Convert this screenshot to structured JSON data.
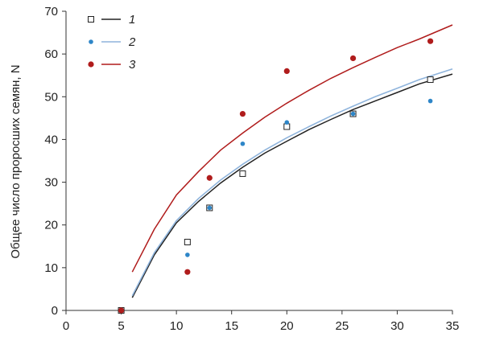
{
  "chart_data": {
    "type": "scatter",
    "ylabel": "Общее число проросших семян, N",
    "xlabel": "",
    "xlim": [
      0,
      35
    ],
    "ylim": [
      0,
      70
    ],
    "xticks": [
      0,
      5,
      10,
      15,
      20,
      25,
      30,
      35
    ],
    "yticks": [
      0,
      10,
      20,
      30,
      40,
      50,
      60,
      70
    ],
    "grid": false,
    "legend_position": "top-left",
    "series": [
      {
        "name": "1",
        "color": "#222222",
        "marker": "open-square",
        "points": [
          [
            5,
            0
          ],
          [
            11,
            16
          ],
          [
            13,
            24
          ],
          [
            16,
            32
          ],
          [
            20,
            43
          ],
          [
            26,
            46
          ],
          [
            33,
            54
          ]
        ],
        "fit": [
          [
            6,
            3
          ],
          [
            8,
            13
          ],
          [
            10,
            20.5
          ],
          [
            12,
            25.5
          ],
          [
            14,
            29.8
          ],
          [
            16,
            33.5
          ],
          [
            18,
            36.8
          ],
          [
            20,
            39.6
          ],
          [
            22,
            42.3
          ],
          [
            24,
            44.7
          ],
          [
            26,
            47
          ],
          [
            28,
            49
          ],
          [
            30,
            51
          ],
          [
            32,
            53
          ],
          [
            35,
            55.3
          ]
        ]
      },
      {
        "name": "2",
        "color": "#2e86c8",
        "fit_color": "#8fb4dc",
        "marker": "dot",
        "points": [
          [
            5,
            0
          ],
          [
            11,
            13
          ],
          [
            13,
            24
          ],
          [
            16,
            39
          ],
          [
            20,
            44
          ],
          [
            26,
            46
          ],
          [
            33,
            49
          ]
        ],
        "fit": [
          [
            6,
            3.4
          ],
          [
            8,
            13.5
          ],
          [
            10,
            21
          ],
          [
            12,
            26.2
          ],
          [
            14,
            30.5
          ],
          [
            16,
            34.2
          ],
          [
            18,
            37.5
          ],
          [
            20,
            40.4
          ],
          [
            22,
            43
          ],
          [
            24,
            45.5
          ],
          [
            26,
            47.8
          ],
          [
            28,
            50
          ],
          [
            30,
            52
          ],
          [
            32,
            54
          ],
          [
            35,
            56.5
          ]
        ]
      },
      {
        "name": "3",
        "color": "#b01c1c",
        "marker": "dot",
        "points": [
          [
            5,
            0
          ],
          [
            11,
            9
          ],
          [
            13,
            31
          ],
          [
            16,
            46
          ],
          [
            20,
            56
          ],
          [
            26,
            59
          ],
          [
            33,
            63
          ]
        ],
        "fit": [
          [
            6,
            9
          ],
          [
            8,
            19
          ],
          [
            10,
            27
          ],
          [
            12,
            32.5
          ],
          [
            14,
            37.5
          ],
          [
            16,
            41.5
          ],
          [
            18,
            45.2
          ],
          [
            20,
            48.5
          ],
          [
            22,
            51.5
          ],
          [
            24,
            54.3
          ],
          [
            26,
            56.8
          ],
          [
            28,
            59.2
          ],
          [
            30,
            61.5
          ],
          [
            32,
            63.5
          ],
          [
            35,
            66.8
          ]
        ]
      }
    ]
  }
}
